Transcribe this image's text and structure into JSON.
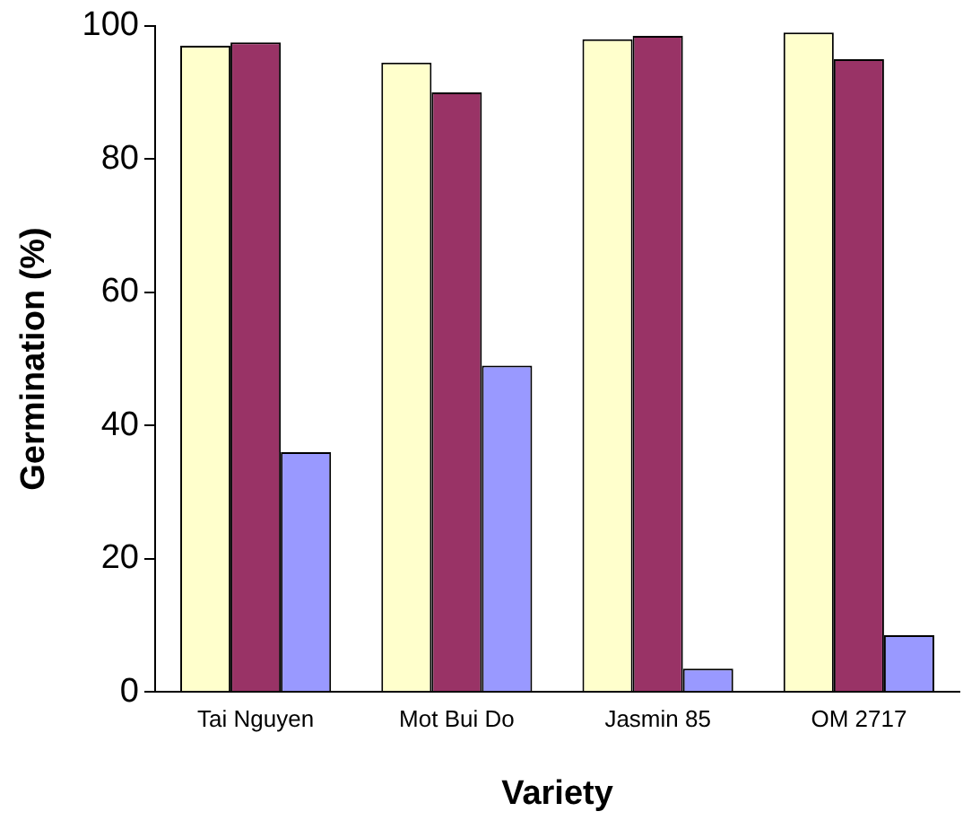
{
  "chart_data": {
    "type": "bar",
    "xlabel": "Variety",
    "ylabel": "Germination (%)",
    "categories": [
      "Tai Nguyen",
      "Mot Bui Do",
      "Jasmin 85",
      "OM 2717"
    ],
    "series": [
      {
        "color": "#ffffcc",
        "values": [
          97,
          94.5,
          98,
          99
        ]
      },
      {
        "color": "#993366",
        "values": [
          97.5,
          90,
          98.5,
          95
        ]
      },
      {
        "color": "#9999ff",
        "values": [
          36,
          49,
          3.5,
          8.5
        ]
      }
    ],
    "ylim": [
      0,
      100
    ],
    "yticks": [
      0,
      20,
      40,
      60,
      80,
      100
    ],
    "grid": false,
    "legend": false
  }
}
